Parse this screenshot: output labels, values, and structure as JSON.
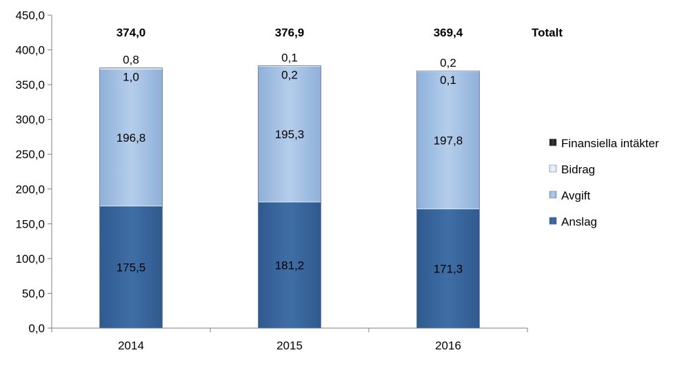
{
  "chart_data": {
    "type": "bar",
    "stacked": true,
    "categories": [
      "2014",
      "2015",
      "2016"
    ],
    "ylim": [
      0,
      450
    ],
    "yticks": [
      "0,0",
      "50,0",
      "100,0",
      "150,0",
      "200,0",
      "250,0",
      "300,0",
      "350,0",
      "400,0",
      "450,0"
    ],
    "ytick_values": [
      0,
      50,
      100,
      150,
      200,
      250,
      300,
      350,
      400,
      450
    ],
    "series": [
      {
        "name": "Anslag",
        "values": [
          175.5,
          181.2,
          171.3
        ],
        "labels": [
          "175,5",
          "181,2",
          "171,3"
        ],
        "color": "#376092"
      },
      {
        "name": "Avgift",
        "values": [
          196.8,
          195.3,
          197.8
        ],
        "labels": [
          "196,8",
          "195,3",
          "197,8"
        ],
        "color": "#95b3d7"
      },
      {
        "name": "Bidrag",
        "values": [
          1.0,
          0.2,
          0.1
        ],
        "labels": [
          "1,0",
          "0,2",
          "0,1"
        ],
        "color": "#dce6f2"
      },
      {
        "name": "Finansiella intäkter",
        "values": [
          0.8,
          0.1,
          0.2
        ],
        "labels": [
          "0,8",
          "0,1",
          "0,2"
        ],
        "color": "#1f1f1f"
      }
    ],
    "totals": {
      "label": "Totalt",
      "values": [
        "374,0",
        "376,9",
        "369,4"
      ]
    },
    "legend": {
      "position": "right",
      "order": [
        "Finansiella intäkter",
        "Bidrag",
        "Avgift",
        "Anslag"
      ]
    },
    "grid": false
  }
}
